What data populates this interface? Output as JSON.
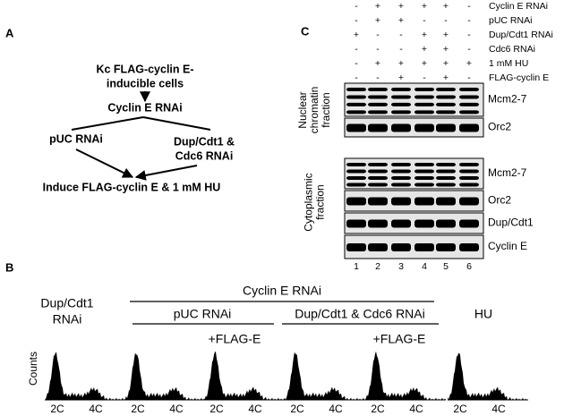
{
  "panel_a": {
    "label": "A",
    "nodes": [
      {
        "lines": [
          "Kc FLAG-cyclin E-",
          "inducible cells"
        ]
      },
      {
        "lines": [
          "Cyclin E RNAi"
        ]
      },
      {
        "lines": [
          "pUC RNAi"
        ]
      },
      {
        "lines": [
          "Dup/Cdt1 &",
          "Cdc6 RNAi"
        ]
      },
      {
        "lines": [
          "Induce FLAG-cyclin E & 1 mM HU"
        ]
      }
    ]
  },
  "panel_c": {
    "label": "C",
    "conditions": [
      {
        "name": "Cyclin E RNAi",
        "signs": [
          "-",
          "+",
          "+",
          "+",
          "+",
          "-"
        ]
      },
      {
        "name": "pUC RNAi",
        "signs": [
          "-",
          "+",
          "+",
          "-",
          "-",
          "-"
        ]
      },
      {
        "name": "Dup/Cdt1 RNAi",
        "signs": [
          "+",
          "-",
          "-",
          "+",
          "+",
          "-"
        ]
      },
      {
        "name": "Cdc6 RNAi",
        "signs": [
          "-",
          "-",
          "-",
          "+",
          "+",
          "-"
        ]
      },
      {
        "name": "1 mM HU",
        "signs": [
          "-",
          "+",
          "+",
          "+",
          "+",
          "+"
        ]
      },
      {
        "name": "FLAG-cyclin E",
        "signs": [
          "-",
          "-",
          "+",
          "-",
          "+",
          "-"
        ]
      }
    ],
    "fractions": [
      {
        "lines": [
          "Nuclear",
          "chromatin",
          "fraction"
        ],
        "blots": [
          "Mcm2-7",
          "Orc2"
        ]
      },
      {
        "lines": [
          "Cytoplasmic",
          "fraction"
        ],
        "blots": [
          "Mcm2-7",
          "Orc2",
          "Dup/Cdt1",
          "Cyclin E"
        ]
      }
    ],
    "lanes": [
      1,
      2,
      3,
      4,
      5,
      6
    ]
  },
  "panel_b": {
    "label": "B",
    "groups": {
      "dup": [
        "Dup/Cdt1",
        "RNAi"
      ],
      "cyclin_e": "Cyclin E RNAi",
      "puc": "pUC RNAi",
      "dup_cdc6": "Dup/Cdt1 & Cdc6 RNAi",
      "hu": "HU",
      "flag": [
        "+FLAG-E",
        "+FLAG-E"
      ]
    },
    "y_label": "Counts",
    "histograms": [
      {
        "ticks": [
          "2C",
          "4C"
        ]
      },
      {
        "ticks": [
          "2C",
          "4C"
        ]
      },
      {
        "ticks": [
          "2C",
          "4C"
        ]
      },
      {
        "ticks": [
          "2C",
          "4C"
        ]
      },
      {
        "ticks": [
          "2C",
          "4C"
        ]
      },
      {
        "ticks": [
          "2C",
          "4C"
        ]
      }
    ]
  }
}
